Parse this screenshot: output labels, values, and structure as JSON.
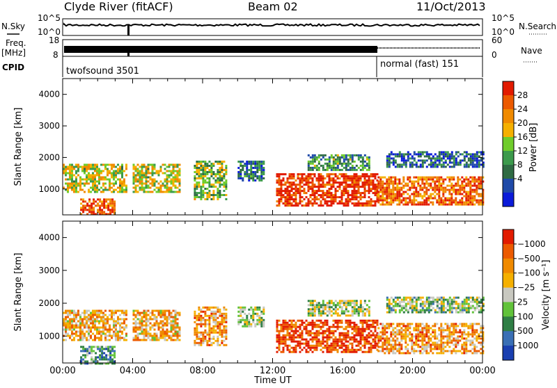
{
  "header": {
    "station": "Clyde River (fitACF)",
    "beam": "Beam 02",
    "date": "11/Oct/2013"
  },
  "noise_panel": {
    "left_label": "N.Sky",
    "right_label": "N.Search",
    "left_ticks": [
      "10^5",
      "10^0"
    ],
    "right_ticks": [
      "10^5",
      "10^0"
    ]
  },
  "freq_panel": {
    "left_label_1": "Freq.",
    "left_label_2": "[MHz]",
    "right_label": "Nave",
    "left_ticks": [
      "18",
      "8"
    ],
    "right_ticks": [
      "60",
      "0"
    ]
  },
  "cpid": {
    "label": "CPID",
    "segments": [
      {
        "name": "twofsound 3501",
        "start": "00:00",
        "end": "18:00"
      },
      {
        "name": "normal (fast) 151",
        "start": "18:00",
        "end": "24:00"
      }
    ]
  },
  "chart_data": [
    {
      "type": "heatmap",
      "title": "",
      "ylabel": "Slant Range [km]",
      "xlabel": "Time UT",
      "x_ticks": [
        "00:00",
        "04:00",
        "08:00",
        "12:00",
        "16:00",
        "20:00",
        "00:00"
      ],
      "y_ticks": [
        1000,
        2000,
        3000,
        4000
      ],
      "ylim": [
        180,
        4500
      ],
      "xlim_hours": [
        0,
        24
      ],
      "colorbar": {
        "label": "Power [dB]",
        "ticks": [
          4,
          8,
          12,
          16,
          20,
          24,
          28
        ],
        "colors": [
          "#0b1bd9",
          "#1f4aa8",
          "#2f6b43",
          "#3c9a4c",
          "#6fcc2b",
          "#f5b000",
          "#f08a00",
          "#ec5a00",
          "#e21b00"
        ]
      },
      "echo_regions": [
        {
          "start_h": 0.0,
          "end_h": 3.7,
          "range_lo": 900,
          "range_hi": 1800,
          "level": 0.55
        },
        {
          "start_h": 1.0,
          "end_h": 3.0,
          "range_lo": 180,
          "range_hi": 700,
          "level": 0.85
        },
        {
          "start_h": 4.0,
          "end_h": 6.7,
          "range_lo": 900,
          "range_hi": 1800,
          "level": 0.55
        },
        {
          "start_h": 7.5,
          "end_h": 9.3,
          "range_lo": 700,
          "range_hi": 1900,
          "level": 0.45
        },
        {
          "start_h": 10.0,
          "end_h": 11.5,
          "range_lo": 1300,
          "range_hi": 1900,
          "level": 0.25
        },
        {
          "start_h": 12.2,
          "end_h": 18.0,
          "range_lo": 500,
          "range_hi": 1500,
          "level": 0.95
        },
        {
          "start_h": 14.0,
          "end_h": 17.5,
          "range_lo": 1600,
          "range_hi": 2100,
          "level": 0.35
        },
        {
          "start_h": 18.0,
          "end_h": 24.0,
          "range_lo": 500,
          "range_hi": 1400,
          "level": 0.8
        },
        {
          "start_h": 18.5,
          "end_h": 24.0,
          "range_lo": 1700,
          "range_hi": 2200,
          "level": 0.2
        }
      ]
    },
    {
      "type": "heatmap",
      "title": "",
      "ylabel": "Slant Range [km]",
      "xlabel": "Time UT",
      "x_ticks": [
        "00:00",
        "04:00",
        "08:00",
        "12:00",
        "16:00",
        "20:00",
        "00:00"
      ],
      "y_ticks": [
        1000,
        2000,
        3000,
        4000
      ],
      "ylim": [
        180,
        4500
      ],
      "xlim_hours": [
        0,
        24
      ],
      "colorbar": {
        "label": "Velocity [m s⁻¹]",
        "ticks": [
          "1000",
          "500",
          "100",
          "25",
          "−25",
          "−100",
          "−500",
          "−1000"
        ],
        "colors": [
          "#1a3fb0",
          "#3a6fb5",
          "#2f7e45",
          "#61c23a",
          "#c8c8c0",
          "#f5b000",
          "#f08a00",
          "#ec5a00",
          "#e21b00"
        ]
      },
      "echo_regions": [
        {
          "start_h": 0.0,
          "end_h": 3.7,
          "range_lo": 900,
          "range_hi": 1800,
          "level": 0.65
        },
        {
          "start_h": 1.0,
          "end_h": 3.0,
          "range_lo": 180,
          "range_hi": 700,
          "level": 0.3
        },
        {
          "start_h": 4.0,
          "end_h": 6.7,
          "range_lo": 900,
          "range_hi": 1800,
          "level": 0.65
        },
        {
          "start_h": 7.5,
          "end_h": 9.3,
          "range_lo": 700,
          "range_hi": 1900,
          "level": 0.7
        },
        {
          "start_h": 10.0,
          "end_h": 11.5,
          "range_lo": 1300,
          "range_hi": 1900,
          "level": 0.45
        },
        {
          "start_h": 12.2,
          "end_h": 18.0,
          "range_lo": 500,
          "range_hi": 1500,
          "level": 0.9
        },
        {
          "start_h": 14.0,
          "end_h": 17.5,
          "range_lo": 1600,
          "range_hi": 2100,
          "level": 0.45
        },
        {
          "start_h": 18.0,
          "end_h": 24.0,
          "range_lo": 500,
          "range_hi": 1400,
          "level": 0.7
        },
        {
          "start_h": 18.5,
          "end_h": 24.0,
          "range_lo": 1700,
          "range_hi": 2200,
          "level": 0.4
        }
      ]
    }
  ]
}
